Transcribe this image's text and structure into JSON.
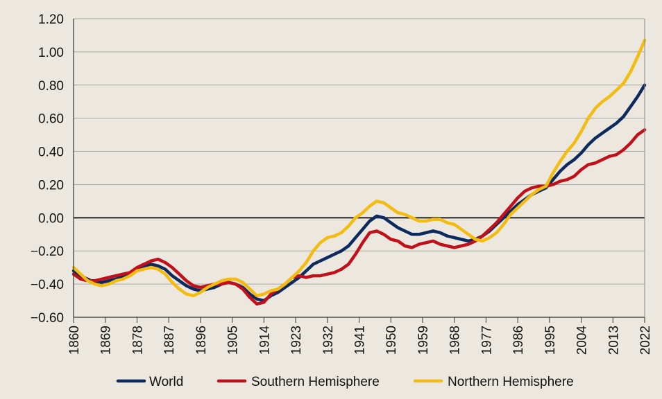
{
  "chart_data": {
    "type": "line",
    "title": "",
    "xlabel": "",
    "ylabel": "",
    "xlim": [
      1860,
      2022
    ],
    "ylim": [
      -0.6,
      1.2
    ],
    "grid": "horizontal",
    "legend_position": "bottom",
    "x_ticks": [
      1860,
      1869,
      1878,
      1887,
      1896,
      1905,
      1914,
      1923,
      1932,
      1941,
      1950,
      1959,
      1968,
      1977,
      1986,
      1995,
      2004,
      2013,
      2022
    ],
    "y_ticks": [
      1.2,
      1.0,
      0.8,
      0.6,
      0.4,
      0.2,
      0.0,
      -0.2,
      -0.4,
      -0.6
    ],
    "x_tick_labels": [
      "1860",
      "1869",
      "1878",
      "1887",
      "1896",
      "1905",
      "1914",
      "1923",
      "1932",
      "1941",
      "1950",
      "1959",
      "1968",
      "1977",
      "1986",
      "1995",
      "2004",
      "2013",
      "2022"
    ],
    "y_tick_labels": [
      "1.20",
      "1.00",
      "0.80",
      "0.60",
      "0.40",
      "0.20",
      "0.00",
      "−0.20",
      "−0.40",
      "−0.60"
    ],
    "series": [
      {
        "name": "World",
        "color": "#0d2a5e",
        "x": [
          1860,
          1862,
          1864,
          1866,
          1868,
          1870,
          1872,
          1874,
          1876,
          1878,
          1880,
          1882,
          1884,
          1886,
          1888,
          1890,
          1892,
          1894,
          1896,
          1898,
          1900,
          1902,
          1904,
          1906,
          1908,
          1910,
          1912,
          1914,
          1916,
          1918,
          1920,
          1922,
          1924,
          1926,
          1928,
          1930,
          1932,
          1934,
          1936,
          1938,
          1940,
          1942,
          1944,
          1946,
          1948,
          1950,
          1952,
          1954,
          1956,
          1958,
          1960,
          1962,
          1964,
          1966,
          1968,
          1970,
          1972,
          1974,
          1976,
          1978,
          1980,
          1982,
          1984,
          1986,
          1988,
          1990,
          1992,
          1994,
          1996,
          1998,
          2000,
          2002,
          2004,
          2006,
          2008,
          2010,
          2012,
          2014,
          2016,
          2018,
          2020,
          2022
        ],
        "y": [
          -0.32,
          -0.35,
          -0.37,
          -0.39,
          -0.39,
          -0.38,
          -0.37,
          -0.35,
          -0.33,
          -0.31,
          -0.29,
          -0.28,
          -0.29,
          -0.31,
          -0.35,
          -0.38,
          -0.41,
          -0.43,
          -0.44,
          -0.43,
          -0.42,
          -0.4,
          -0.39,
          -0.4,
          -0.42,
          -0.46,
          -0.49,
          -0.5,
          -0.47,
          -0.45,
          -0.42,
          -0.39,
          -0.36,
          -0.32,
          -0.28,
          -0.26,
          -0.24,
          -0.22,
          -0.2,
          -0.17,
          -0.12,
          -0.07,
          -0.02,
          0.01,
          0.0,
          -0.03,
          -0.06,
          -0.08,
          -0.1,
          -0.1,
          -0.09,
          -0.08,
          -0.09,
          -0.11,
          -0.12,
          -0.13,
          -0.14,
          -0.13,
          -0.11,
          -0.08,
          -0.04,
          0.0,
          0.04,
          0.08,
          0.11,
          0.14,
          0.16,
          0.18,
          0.23,
          0.28,
          0.32,
          0.35,
          0.39,
          0.44,
          0.48,
          0.51,
          0.54,
          0.57,
          0.61,
          0.67,
          0.73,
          0.8
        ]
      },
      {
        "name": "Southern Hemisphere",
        "color": "#c0101a",
        "x": [
          1860,
          1862,
          1864,
          1866,
          1868,
          1870,
          1872,
          1874,
          1876,
          1878,
          1880,
          1882,
          1884,
          1886,
          1888,
          1890,
          1892,
          1894,
          1896,
          1898,
          1900,
          1902,
          1904,
          1906,
          1908,
          1910,
          1912,
          1914,
          1916,
          1918,
          1920,
          1922,
          1924,
          1926,
          1928,
          1930,
          1932,
          1934,
          1936,
          1938,
          1940,
          1942,
          1944,
          1946,
          1948,
          1950,
          1952,
          1954,
          1956,
          1958,
          1960,
          1962,
          1964,
          1966,
          1968,
          1970,
          1972,
          1974,
          1976,
          1978,
          1980,
          1982,
          1984,
          1986,
          1988,
          1990,
          1992,
          1994,
          1996,
          1998,
          2000,
          2002,
          2004,
          2006,
          2008,
          2010,
          2012,
          2014,
          2016,
          2018,
          2020,
          2022
        ],
        "y": [
          -0.34,
          -0.37,
          -0.38,
          -0.38,
          -0.37,
          -0.36,
          -0.35,
          -0.34,
          -0.33,
          -0.3,
          -0.28,
          -0.26,
          -0.25,
          -0.27,
          -0.3,
          -0.34,
          -0.38,
          -0.41,
          -0.42,
          -0.41,
          -0.4,
          -0.4,
          -0.39,
          -0.4,
          -0.43,
          -0.48,
          -0.52,
          -0.51,
          -0.46,
          -0.43,
          -0.4,
          -0.36,
          -0.35,
          -0.36,
          -0.35,
          -0.35,
          -0.34,
          -0.33,
          -0.31,
          -0.28,
          -0.22,
          -0.15,
          -0.09,
          -0.08,
          -0.1,
          -0.13,
          -0.14,
          -0.17,
          -0.18,
          -0.16,
          -0.15,
          -0.14,
          -0.16,
          -0.17,
          -0.18,
          -0.17,
          -0.16,
          -0.14,
          -0.11,
          -0.07,
          -0.03,
          0.02,
          0.07,
          0.12,
          0.16,
          0.18,
          0.19,
          0.19,
          0.2,
          0.22,
          0.23,
          0.25,
          0.29,
          0.32,
          0.33,
          0.35,
          0.37,
          0.38,
          0.41,
          0.45,
          0.5,
          0.53
        ]
      },
      {
        "name": "Northern Hemisphere",
        "color": "#f4bc10",
        "x": [
          1860,
          1862,
          1864,
          1866,
          1868,
          1870,
          1872,
          1874,
          1876,
          1878,
          1880,
          1882,
          1884,
          1886,
          1888,
          1890,
          1892,
          1894,
          1896,
          1898,
          1900,
          1902,
          1904,
          1906,
          1908,
          1910,
          1912,
          1914,
          1916,
          1918,
          1920,
          1922,
          1924,
          1926,
          1928,
          1930,
          1932,
          1934,
          1936,
          1938,
          1940,
          1942,
          1944,
          1946,
          1948,
          1950,
          1952,
          1954,
          1956,
          1958,
          1960,
          1962,
          1964,
          1966,
          1968,
          1970,
          1972,
          1974,
          1976,
          1978,
          1980,
          1982,
          1984,
          1986,
          1988,
          1990,
          1992,
          1994,
          1996,
          1998,
          2000,
          2002,
          2004,
          2006,
          2008,
          2010,
          2012,
          2014,
          2016,
          2018,
          2020,
          2022
        ],
        "y": [
          -0.3,
          -0.34,
          -0.38,
          -0.4,
          -0.41,
          -0.4,
          -0.38,
          -0.37,
          -0.35,
          -0.32,
          -0.31,
          -0.3,
          -0.31,
          -0.34,
          -0.39,
          -0.43,
          -0.46,
          -0.47,
          -0.45,
          -0.42,
          -0.4,
          -0.38,
          -0.37,
          -0.37,
          -0.39,
          -0.43,
          -0.47,
          -0.46,
          -0.44,
          -0.43,
          -0.4,
          -0.36,
          -0.32,
          -0.27,
          -0.2,
          -0.15,
          -0.12,
          -0.11,
          -0.09,
          -0.05,
          0.0,
          0.03,
          0.07,
          0.1,
          0.09,
          0.06,
          0.03,
          0.02,
          0.0,
          -0.02,
          -0.02,
          -0.01,
          -0.01,
          -0.03,
          -0.04,
          -0.07,
          -0.1,
          -0.13,
          -0.14,
          -0.12,
          -0.09,
          -0.04,
          0.02,
          0.06,
          0.1,
          0.14,
          0.17,
          0.19,
          0.27,
          0.34,
          0.4,
          0.45,
          0.52,
          0.6,
          0.66,
          0.7,
          0.73,
          0.77,
          0.81,
          0.88,
          0.97,
          1.07
        ]
      }
    ]
  }
}
